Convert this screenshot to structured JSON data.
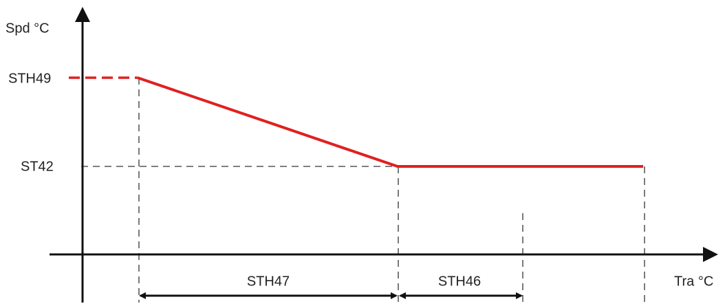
{
  "y_axis": {
    "label": "Spd °C",
    "levels": [
      "STH49",
      "ST42"
    ]
  },
  "x_axis": {
    "label": "Tra °C"
  },
  "spans": [
    "STH47",
    "STH46"
  ]
}
